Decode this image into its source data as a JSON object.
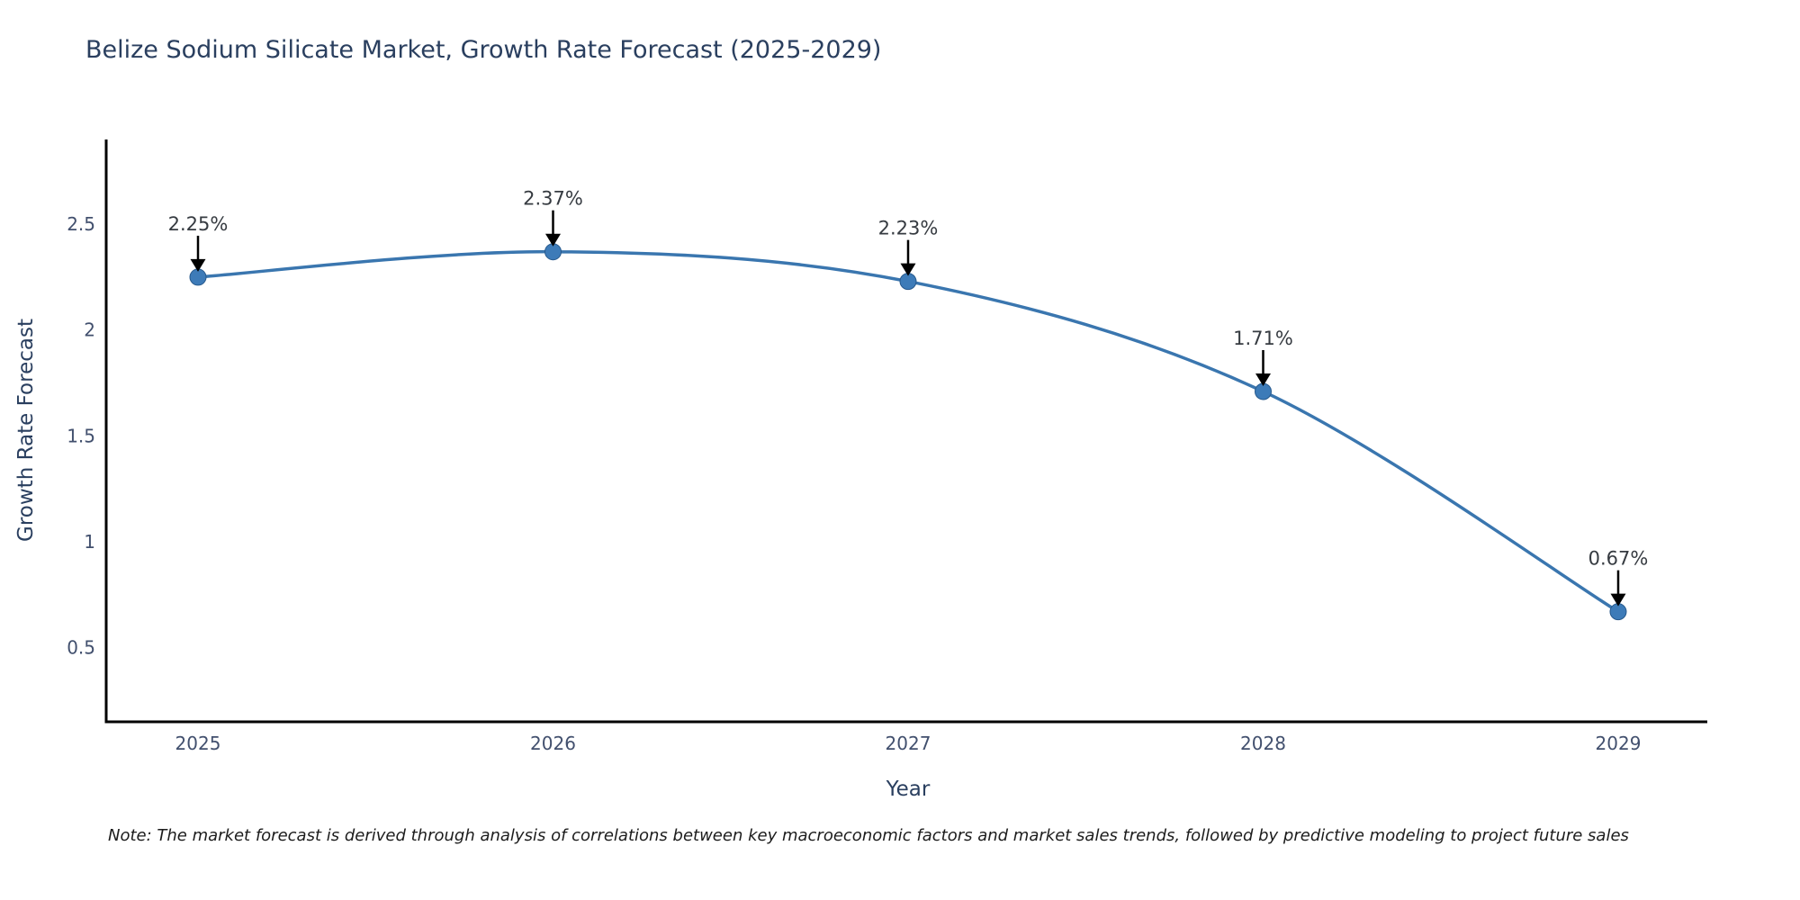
{
  "note": "Note: The market forecast is derived through analysis of correlations between key macroeconomic factors and market sales trends, followed by predictive modeling to project future sales",
  "chart_data": {
    "type": "line",
    "title": "Belize Sodium Silicate Market, Growth Rate Forecast (2025-2029)",
    "xlabel": "Year",
    "ylabel": "Growth Rate Forecast",
    "x": [
      "2025",
      "2026",
      "2027",
      "2028",
      "2029"
    ],
    "series": [
      {
        "name": "Growth Rate Forecast",
        "values": [
          2.25,
          2.37,
          2.23,
          1.71,
          0.67
        ]
      }
    ],
    "point_labels": [
      "2.25%",
      "2.37%",
      "2.23%",
      "1.71%",
      "0.67%"
    ],
    "yticks": [
      0.5,
      1,
      1.5,
      2,
      2.5
    ],
    "ylim": [
      0.15,
      2.9
    ],
    "grid": false,
    "legend": "none",
    "colors": {
      "line": "#3a76af",
      "marker": "#3d7bb8",
      "marker_edge": "#27598c",
      "axis": "#000000",
      "tick_label": "#42506e",
      "axis_title": "#2a3f5f",
      "chart_title": "#2a3f5f",
      "annotation_text": "#363b41",
      "arrow": "#000000"
    }
  }
}
